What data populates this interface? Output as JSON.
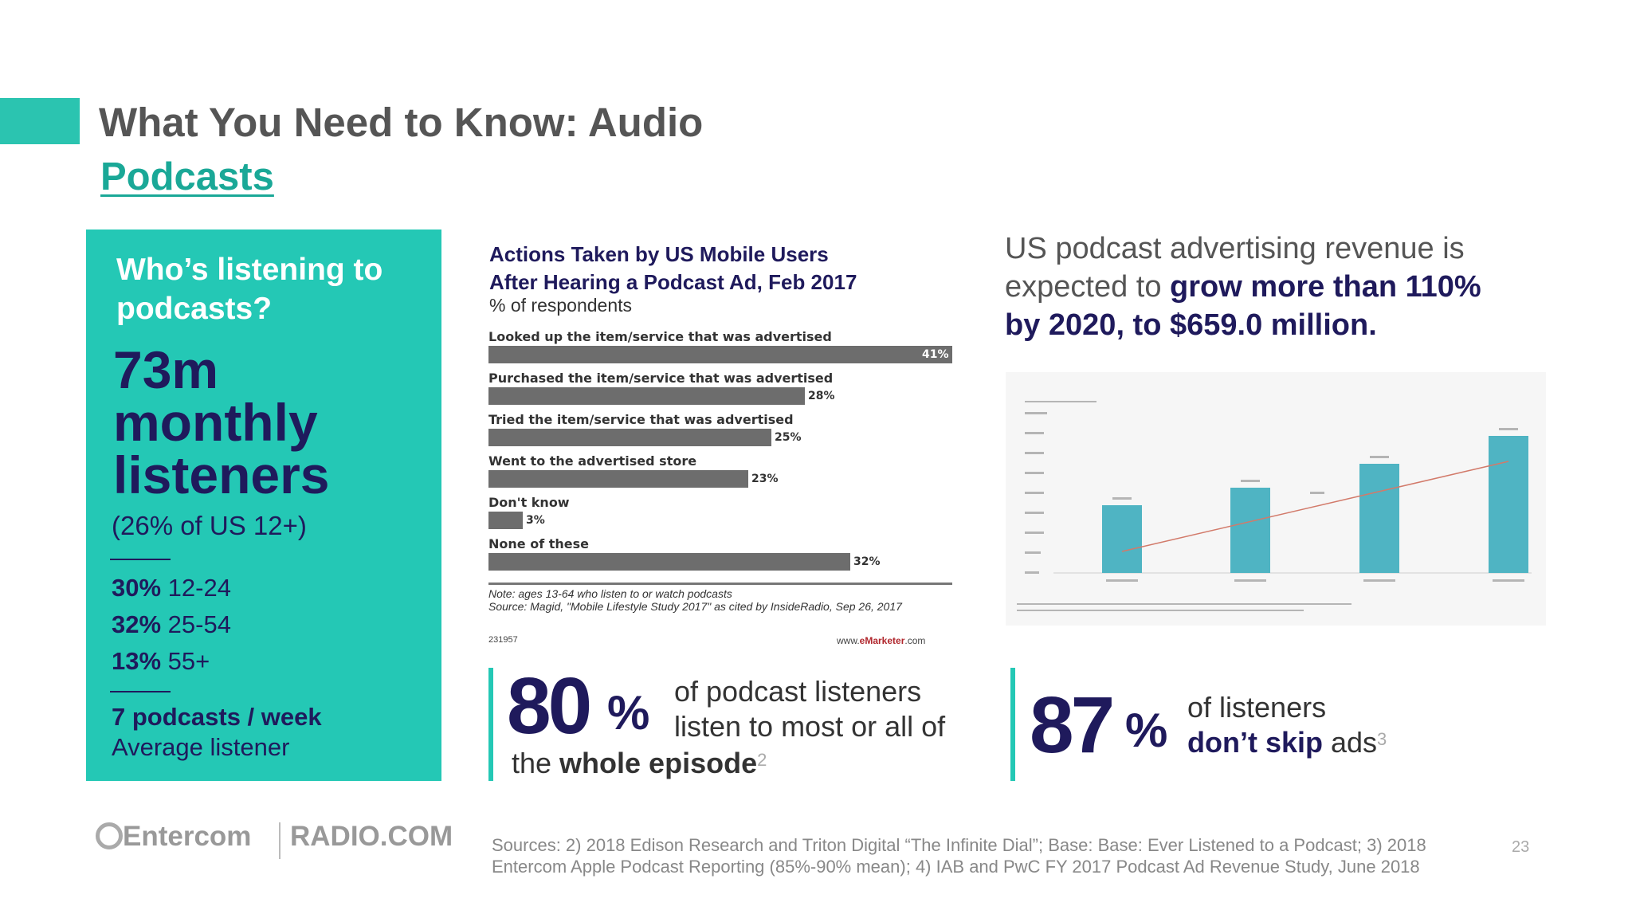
{
  "header": {
    "title": "What You Need to Know: Audio",
    "subtitle": "Podcasts"
  },
  "listeners_box": {
    "question": "Who’s listening to podcasts?",
    "big_number": "73m",
    "big_line2": "monthly",
    "big_line3": "listeners",
    "share": "(26% of US 12+)",
    "age_groups": [
      {
        "pct": "30%",
        "range": "12-24"
      },
      {
        "pct": "32%",
        "range": "25-54"
      },
      {
        "pct": "13%",
        "range": "55+"
      }
    ],
    "weekly_bold": "7 podcasts / week",
    "weekly_label": "Average listener"
  },
  "chart_data": {
    "type": "bar",
    "title_line1": "Actions Taken by US Mobile Users",
    "title_line2": "After Hearing a Podcast Ad, Feb 2017",
    "subtitle": "% of respondents",
    "categories": [
      "Looked up the item/service that was advertised",
      "Purchased the item/service that was advertised",
      "Tried the item/service that was advertised",
      "Went to the advertised store",
      "Don't know",
      "None of these"
    ],
    "values": [
      41,
      28,
      25,
      23,
      3,
      32
    ],
    "value_labels": [
      "41%",
      "28%",
      "25%",
      "23%",
      "3%",
      "32%"
    ],
    "xlim": [
      0,
      41
    ],
    "note_line1": "Note: ages 13-64 who listen to or watch podcasts",
    "note_line2": "Source: Magid, \"Mobile Lifestyle Study 2017\" as cited by InsideRadio, Sep 26, 2017",
    "id": "231957",
    "brand_prefix": "www.",
    "brand_bold": "eMarketer",
    "brand_suffix": ".com"
  },
  "stat_episode": {
    "number": "80",
    "percent": "%",
    "line1": "of podcast listeners",
    "line2": "listen to most or all of",
    "line3_plain": "the ",
    "line3_bold": "whole episode",
    "footnote": "2"
  },
  "revenue": {
    "line1": "US podcast advertising revenue is",
    "line2_plain": "expected to ",
    "line2_bold": "grow more than 110%",
    "line3_bold": "by 2020, to $659.0 million."
  },
  "stat_ads": {
    "number": "87",
    "percent": "%",
    "line1": "of listeners",
    "line2_bold": "don’t skip",
    "line2_plain": " ads",
    "footnote": "3"
  },
  "footer": {
    "logo_entercom": "Entercom",
    "logo_radio": "RADIO.COM",
    "sources_line1": "Sources: 2) 2018 Edison Research and Triton Digital “The Infinite Dial”; Base: Base: Ever Listened to a Podcast; 3) 2018",
    "sources_line2": "Entercom Apple Podcast Reporting (85%-90% mean); 4) IAB and PwC FY 2017 Podcast Ad Revenue Study, June 2018",
    "page_number": "23"
  },
  "colors": {
    "accent": "#24c8b5",
    "navy": "#1f1a5c",
    "bar": "#6d6d6d"
  }
}
